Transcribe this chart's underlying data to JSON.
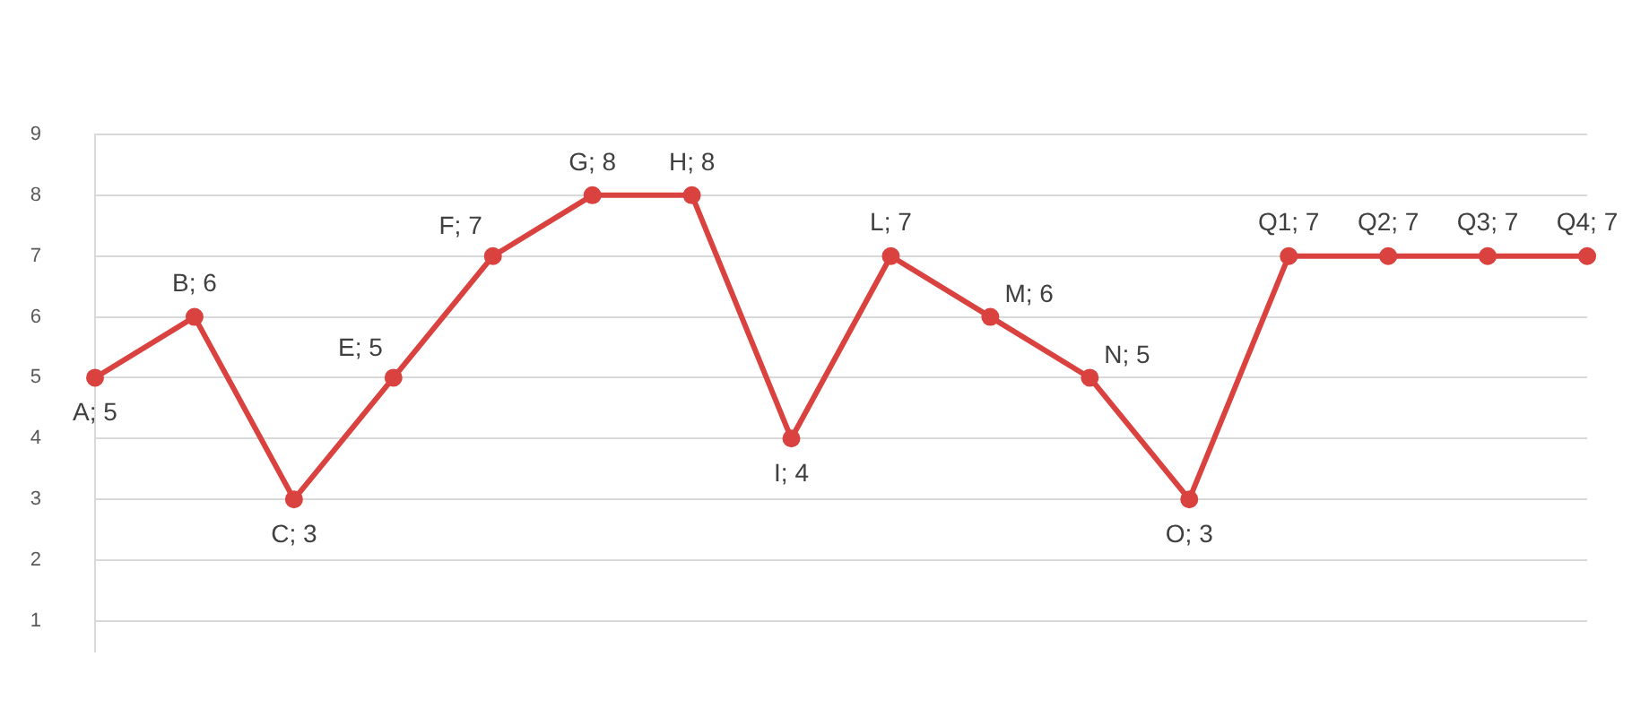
{
  "chart_data": {
    "type": "line",
    "categories": [
      null,
      null,
      null,
      null,
      null,
      null,
      null,
      null,
      null,
      null,
      null,
      null,
      null,
      null,
      null,
      null
    ],
    "series": [
      {
        "color": "#d9423f",
        "values": [
          5,
          6,
          3,
          5,
          7,
          8,
          8,
          4,
          7,
          6,
          5,
          3,
          7,
          7,
          7,
          7
        ],
        "value_labels": [
          "A; 5",
          "B; 6",
          "C; 3",
          "E; 5",
          "F; 7",
          "G; 8",
          "H; 8",
          "I; 4",
          "L; 7",
          "M; 6",
          "N; 5",
          "O; 3",
          "Q1; 7",
          "Q2; 7",
          "Q3; 7",
          "Q4; 7"
        ]
      }
    ],
    "ylim": [
      0.5,
      9
    ],
    "yticks": [
      1,
      2,
      3,
      4,
      5,
      6,
      7,
      8,
      9
    ],
    "grid": "y",
    "legend": false,
    "tick_labels": "y",
    "marker": "circle",
    "line_style": "solid"
  }
}
